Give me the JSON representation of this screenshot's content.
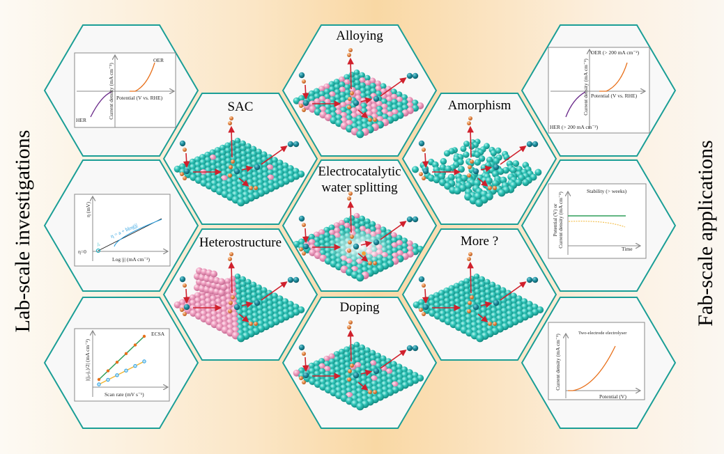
{
  "side_labels": {
    "left": "Lab-scale investigations",
    "right": "Fab-scale applications"
  },
  "center": {
    "title_line1": "Electrocatalytic",
    "title_line2": "water splitting"
  },
  "strategies": [
    {
      "title": "SAC"
    },
    {
      "title": "Heterostructure"
    },
    {
      "title": "Alloying"
    },
    {
      "title": "Doping"
    },
    {
      "title": "Amorphism"
    },
    {
      "title": "More ?"
    }
  ],
  "lab_charts": {
    "polarization": {
      "oer": "OER",
      "her": "HER",
      "xlabel": "Potential (V vs. RHE)",
      "ylabel": "Current density (mA cm⁻²)"
    },
    "tafel": {
      "ylabel": "η (mV)",
      "eta0": "η=0",
      "equation": "η = a + blog|j|",
      "j0": "j₀",
      "xlabel": "Log |j| (mA cm⁻²)"
    },
    "ecsa": {
      "title": "ECSA",
      "ylabel": "|(jₐ-j꜀)/2| (mA cm⁻²)",
      "xlabel": "Scan rate (mV s⁻¹)"
    }
  },
  "fab_charts": {
    "polarization": {
      "oer": "OER (> 200 mA cm⁻²)",
      "her": "HER (> 200 mA cm⁻²)",
      "xlabel": "Potential (V vs. RHE)",
      "ylabel": "Current density (mA cm⁻²)"
    },
    "stability": {
      "title": "Stability (> weeks)",
      "ylabel1": "Potential (V) or",
      "ylabel2": "Current density (mA cm⁻²)",
      "xlabel": "Time"
    },
    "electrolyser": {
      "title": "Two-electrode electrolyser",
      "ylabel": "Current density (mA cm⁻²)",
      "xlabel": "Potential (V)"
    }
  },
  "colors": {
    "hex_stroke": "#1a9e96",
    "teal_atom": "#2fc4b8",
    "pink_atom": "#ee9fc0",
    "arrow": "#d0202c",
    "oer": "#e8701a",
    "her": "#6a2a8a",
    "green": "#2e9e58",
    "blue": "#2a9fe0",
    "yellow": "#f2b531"
  }
}
